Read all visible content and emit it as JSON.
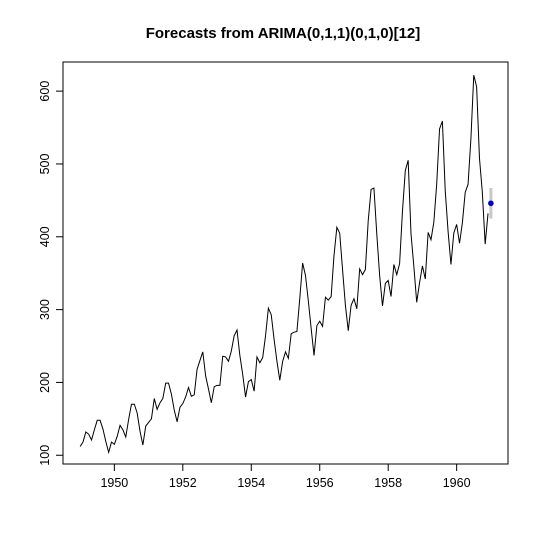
{
  "chart_data": {
    "type": "line",
    "title": "Forecasts from ARIMA(0,1,1)(0,1,0)[12]",
    "xlabel": "",
    "ylabel": "",
    "xlim": [
      1948.5,
      1961.5
    ],
    "ylim": [
      88,
      640
    ],
    "x_ticks": [
      1950,
      1952,
      1954,
      1956,
      1958,
      1960
    ],
    "y_ticks": [
      100,
      200,
      300,
      400,
      500,
      600
    ],
    "x_tick_labels": [
      "1950",
      "1952",
      "1954",
      "1956",
      "1958",
      "1960"
    ],
    "y_tick_labels": [
      "100",
      "200",
      "300",
      "400",
      "500",
      "600"
    ],
    "grid": false,
    "series": [
      {
        "x_start": 1949.0,
        "x_step": 0.08333333,
        "color": "#000000",
        "values": [
          112,
          118,
          132,
          129,
          121,
          135,
          148,
          148,
          136,
          119,
          104,
          118,
          115,
          126,
          141,
          135,
          125,
          149,
          170,
          170,
          158,
          133,
          114,
          140,
          145,
          150,
          178,
          163,
          172,
          178,
          199,
          199,
          184,
          162,
          146,
          166,
          171,
          180,
          193,
          181,
          183,
          218,
          230,
          242,
          209,
          191,
          172,
          194,
          196,
          196,
          236,
          235,
          229,
          243,
          264,
          272,
          237,
          211,
          180,
          201,
          204,
          188,
          235,
          227,
          234,
          264,
          302,
          293,
          259,
          229,
          203,
          229,
          242,
          233,
          267,
          269,
          270,
          315,
          364,
          347,
          312,
          274,
          237,
          278,
          284,
          277,
          317,
          313,
          318,
          374,
          413,
          405,
          355,
          306,
          271,
          306,
          315,
          301,
          356,
          348,
          355,
          422,
          465,
          467,
          404,
          347,
          305,
          336,
          340,
          318,
          362,
          348,
          363,
          435,
          491,
          505,
          404,
          359,
          310,
          337,
          360,
          342,
          406,
          396,
          420,
          472,
          548,
          559,
          463,
          407,
          362,
          405,
          417,
          391,
          419,
          461,
          472,
          535,
          622,
          606,
          508,
          461,
          390,
          432
        ]
      }
    ],
    "forecast": {
      "x": 1961.0,
      "value": 446,
      "interval_low": 425,
      "interval_high": 467,
      "point_color": "#0000cc",
      "interval_color": "#c8c8c8"
    }
  }
}
